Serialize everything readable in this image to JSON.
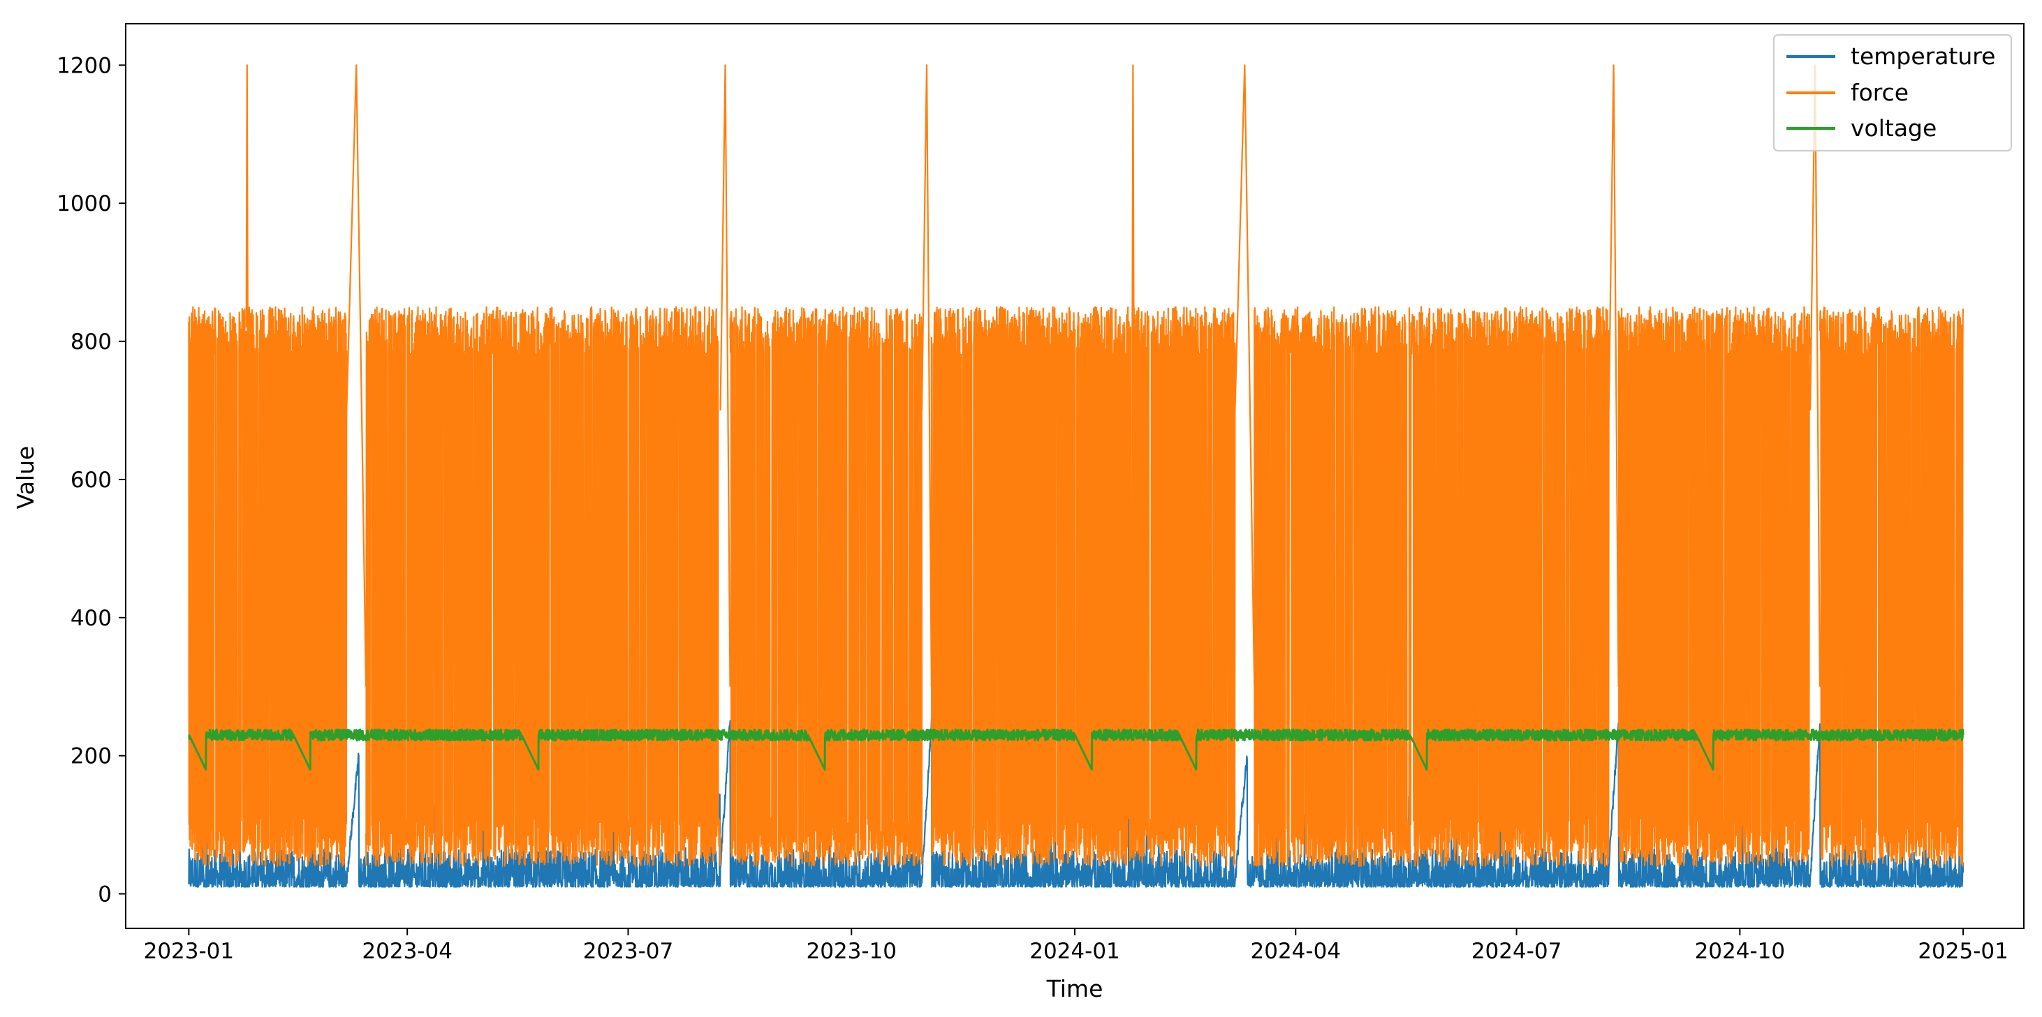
{
  "chart_data": {
    "type": "line",
    "title": "",
    "xlabel": "Time",
    "ylabel": "Value",
    "x_range": [
      "2023-01-01",
      "2025-01-01"
    ],
    "xlim": [
      "2022-12-06",
      "2025-01-26"
    ],
    "ylim": [
      -50,
      1260
    ],
    "x_ticks": [
      "2023-01",
      "2023-04",
      "2023-07",
      "2023-10",
      "2024-01",
      "2024-04",
      "2024-07",
      "2024-10",
      "2025-01"
    ],
    "x_tick_dates": [
      "2023-01-01",
      "2023-04-01",
      "2023-07-01",
      "2023-10-01",
      "2024-01-01",
      "2024-04-01",
      "2024-07-01",
      "2024-10-01",
      "2025-01-01"
    ],
    "y_ticks": [
      0,
      200,
      400,
      600,
      800,
      1000,
      1200
    ],
    "grid": false,
    "legend_position": "top-right",
    "colors": {
      "temperature": "#1f77b4",
      "force": "#ff7f0e",
      "voltage": "#2ca02c"
    },
    "series": [
      {
        "name": "temperature",
        "color": "#1f77b4",
        "typical_range": [
          10,
          100
        ],
        "occasional_max": 150,
        "gap_ramps": [
          {
            "start": "2023-03-07",
            "end": "2023-03-12",
            "from": 20,
            "to": 200
          },
          {
            "start": "2023-08-08",
            "end": "2023-08-12",
            "from": 40,
            "to": 250
          },
          {
            "start": "2023-10-30",
            "end": "2023-11-03",
            "from": 20,
            "to": 250
          },
          {
            "start": "2024-03-07",
            "end": "2024-03-12",
            "from": 20,
            "to": 200
          },
          {
            "start": "2024-08-08",
            "end": "2024-08-12",
            "from": 40,
            "to": 250
          },
          {
            "start": "2024-10-30",
            "end": "2024-11-03",
            "from": 20,
            "to": 250
          }
        ]
      },
      {
        "name": "force",
        "color": "#ff7f0e",
        "typical_range": [
          40,
          850
        ],
        "blocks": [
          {
            "start": "2023-01-01",
            "end": "2023-03-07"
          },
          {
            "start": "2023-03-15",
            "end": "2023-08-08"
          },
          {
            "start": "2023-08-12",
            "end": "2023-10-30"
          },
          {
            "start": "2023-11-03",
            "end": "2024-03-07"
          },
          {
            "start": "2024-03-15",
            "end": "2024-08-08"
          },
          {
            "start": "2024-08-12",
            "end": "2024-10-30"
          },
          {
            "start": "2024-11-03",
            "end": "2025-01-01"
          }
        ],
        "spikes": [
          {
            "date": "2023-01-25",
            "value": 1200
          },
          {
            "date": "2023-03-13",
            "value": 1200
          },
          {
            "date": "2023-08-10",
            "value": 1200
          },
          {
            "date": "2023-11-01",
            "value": 1200
          },
          {
            "date": "2024-01-25",
            "value": 1200
          },
          {
            "date": "2024-03-13",
            "value": 1200
          },
          {
            "date": "2024-08-10",
            "value": 1200
          },
          {
            "date": "2024-11-01",
            "value": 1200
          }
        ]
      },
      {
        "name": "voltage",
        "color": "#2ca02c",
        "typical_range": [
          222,
          238
        ],
        "dips": [
          {
            "date": "2023-01-08",
            "value": 180
          },
          {
            "date": "2023-02-20",
            "value": 180
          },
          {
            "date": "2023-05-25",
            "value": 180
          },
          {
            "date": "2023-09-20",
            "value": 180
          },
          {
            "date": "2024-01-08",
            "value": 180
          },
          {
            "date": "2024-02-20",
            "value": 180
          },
          {
            "date": "2024-05-25",
            "value": 180
          },
          {
            "date": "2024-09-20",
            "value": 180
          }
        ]
      }
    ]
  }
}
